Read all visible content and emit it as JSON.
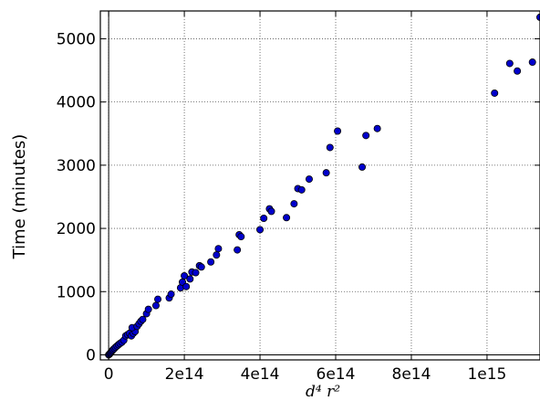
{
  "chart_data": {
    "type": "scatter",
    "title": "",
    "xlabel": "d⁴ r²",
    "ylabel": "Time (minutes)",
    "xlim": [
      -22000000000000.0,
      1140000000000000.0
    ],
    "ylim": [
      -80,
      5440
    ],
    "xticks": [
      0,
      200000000000000.0,
      400000000000000.0,
      600000000000000.0,
      800000000000000.0,
      1000000000000000.0
    ],
    "xtick_labels": [
      "0",
      "2e14",
      "4e14",
      "6e14",
      "8e14",
      "1e15"
    ],
    "yticks": [
      0,
      1000,
      2000,
      3000,
      4000,
      5000
    ],
    "ytick_labels": [
      "0",
      "1000",
      "2000",
      "3000",
      "4000",
      "5000"
    ],
    "grid": true,
    "point_color": "#0000cc",
    "series": [
      {
        "points": [
          [
            0,
            0
          ],
          [
            2000000000000.0,
            10
          ],
          [
            4000000000000.0,
            25
          ],
          [
            6000000000000.0,
            40
          ],
          [
            8000000000000.0,
            55
          ],
          [
            10000000000000.0,
            70
          ],
          [
            12000000000000.0,
            85
          ],
          [
            15000000000000.0,
            100
          ],
          [
            18000000000000.0,
            120
          ],
          [
            22000000000000.0,
            140
          ],
          [
            26000000000000.0,
            160
          ],
          [
            30000000000000.0,
            180
          ],
          [
            35000000000000.0,
            200
          ],
          [
            40000000000000.0,
            230
          ],
          [
            45000000000000.0,
            300
          ],
          [
            50000000000000.0,
            320
          ],
          [
            55000000000000.0,
            340
          ],
          [
            60000000000000.0,
            300
          ],
          [
            65000000000000.0,
            340
          ],
          [
            70000000000000.0,
            370
          ],
          [
            62000000000000.0,
            430
          ],
          [
            75000000000000.0,
            450
          ],
          [
            80000000000000.0,
            490
          ],
          [
            85000000000000.0,
            530
          ],
          [
            90000000000000.0,
            560
          ],
          [
            100000000000000.0,
            650
          ],
          [
            105000000000000.0,
            720
          ],
          [
            125000000000000.0,
            780
          ],
          [
            130000000000000.0,
            880
          ],
          [
            160000000000000.0,
            900
          ],
          [
            165000000000000.0,
            960
          ],
          [
            190000000000000.0,
            1060
          ],
          [
            195000000000000.0,
            1150
          ],
          [
            200000000000000.0,
            1250
          ],
          [
            205000000000000.0,
            1080
          ],
          [
            215000000000000.0,
            1200
          ],
          [
            220000000000000.0,
            1310
          ],
          [
            230000000000000.0,
            1300
          ],
          [
            240000000000000.0,
            1410
          ],
          [
            245000000000000.0,
            1390
          ],
          [
            270000000000000.0,
            1470
          ],
          [
            285000000000000.0,
            1580
          ],
          [
            290000000000000.0,
            1680
          ],
          [
            340000000000000.0,
            1660
          ],
          [
            345000000000000.0,
            1900
          ],
          [
            350000000000000.0,
            1870
          ],
          [
            400000000000000.0,
            1980
          ],
          [
            410000000000000.0,
            2160
          ],
          [
            425000000000000.0,
            2310
          ],
          [
            430000000000000.0,
            2270
          ],
          [
            470000000000000.0,
            2170
          ],
          [
            490000000000000.0,
            2390
          ],
          [
            500000000000000.0,
            2630
          ],
          [
            510000000000000.0,
            2610
          ],
          [
            530000000000000.0,
            2780
          ],
          [
            575000000000000.0,
            2880
          ],
          [
            585000000000000.0,
            3280
          ],
          [
            605000000000000.0,
            3540
          ],
          [
            670000000000000.0,
            2970
          ],
          [
            680000000000000.0,
            3470
          ],
          [
            710000000000000.0,
            3580
          ],
          [
            1020000000000000.0,
            4140
          ],
          [
            1060000000000000.0,
            4610
          ],
          [
            1080000000000000.0,
            4490
          ],
          [
            1120000000000000.0,
            4630
          ],
          [
            1140000000000000.0,
            5340
          ]
        ]
      }
    ]
  }
}
